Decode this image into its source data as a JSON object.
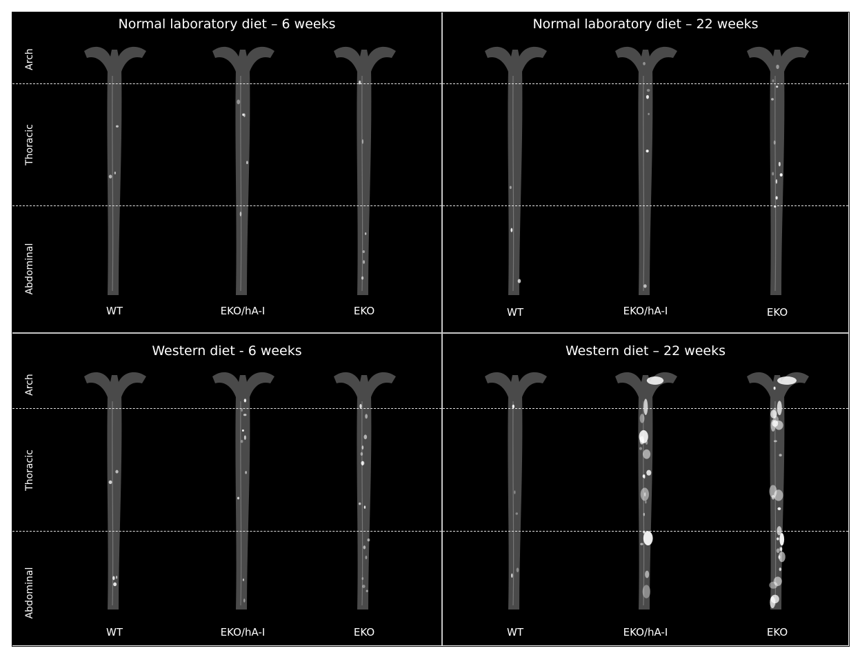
{
  "panels": [
    {
      "title": "Normal laboratory diet – 6 weeks",
      "show_regions": true,
      "samples": [
        "WT",
        "EKO/hA-I",
        "EKO"
      ],
      "plaque_level": [
        0.05,
        0.1,
        0.15
      ]
    },
    {
      "title": "Normal laboratory diet – 22 weeks",
      "show_regions": false,
      "samples": [
        "WT",
        "EKO/hA-I",
        "EKO"
      ],
      "plaque_level": [
        0.05,
        0.15,
        0.35
      ]
    },
    {
      "title": "Western diet - 6 weeks",
      "show_regions": true,
      "samples": [
        "WT",
        "EKO/hA-I",
        "EKO"
      ],
      "plaque_level": [
        0.1,
        0.3,
        0.5
      ]
    },
    {
      "title": "Western diet – 22 weeks",
      "show_regions": false,
      "samples": [
        "WT",
        "EKO/hA-I",
        "EKO"
      ],
      "plaque_level": [
        0.1,
        0.7,
        1.0
      ]
    }
  ],
  "regions": [
    "Arch",
    "Thoracic",
    "Abdominal"
  ],
  "colors": {
    "background": "#000000",
    "tissue": "#4a4a4a",
    "plaque": "#ffffff",
    "divider": "#c8c8c8"
  }
}
